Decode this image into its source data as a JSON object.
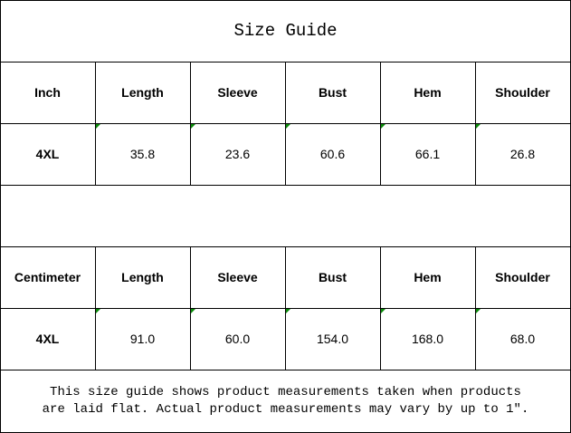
{
  "title": "Size Guide",
  "inch_table": {
    "headers": [
      "Inch",
      "Length",
      "Sleeve",
      "Bust",
      "Hem",
      "Shoulder"
    ],
    "rows": [
      [
        "4XL",
        "35.8",
        "23.6",
        "60.6",
        "66.1",
        "26.8"
      ]
    ]
  },
  "cm_table": {
    "headers": [
      "Centimeter",
      "Length",
      "Sleeve",
      "Bust",
      "Hem",
      "Shoulder"
    ],
    "rows": [
      [
        "4XL",
        "91.0",
        "60.0",
        "154.0",
        "168.0",
        "68.0"
      ]
    ]
  },
  "note": {
    "line1": "This size guide shows product measurements taken when products",
    "line2": "are laid flat. Actual product measurements may vary by up to 1″."
  },
  "colors": {
    "border": "#000000",
    "indicator": "#0a8a0a"
  }
}
